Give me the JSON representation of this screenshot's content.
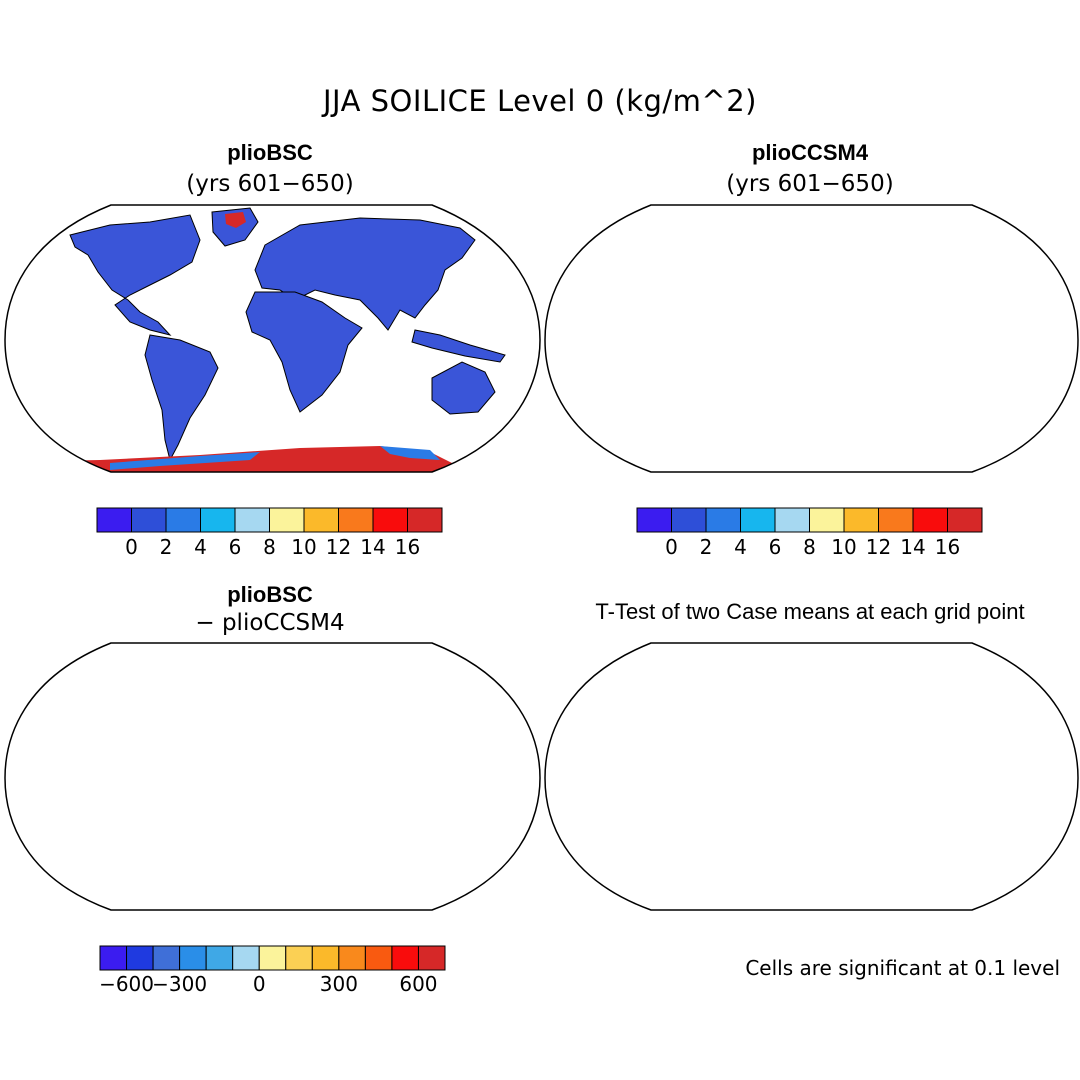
{
  "title": "JJA SOILICE Level 0 (kg/m^2)",
  "panels": {
    "top_left": {
      "title": "plioBSC",
      "subtitle": "(yrs 601−650)"
    },
    "top_right": {
      "title": "plioCCSM4",
      "subtitle": "(yrs 601−650)"
    },
    "bottom_left": {
      "title": "plioBSC",
      "subtitle": "− plioCCSM4"
    },
    "bottom_right": {
      "title": "T-Test of two Case means at each grid point",
      "note": "Cells are significant at 0.1 level"
    }
  },
  "colorbars": {
    "absolute": {
      "colors": [
        "#3b1cf0",
        "#2e4fd8",
        "#2a7be6",
        "#17b6ee",
        "#a6d8f1",
        "#fbf39b",
        "#fbb92a",
        "#f9791c",
        "#f90c0c",
        "#d62828"
      ],
      "tick_labels": [
        "0",
        "2",
        "4",
        "6",
        "8",
        "10",
        "12",
        "14",
        "16"
      ]
    },
    "difference": {
      "colors": [
        "#3b1cf0",
        "#1f3ae0",
        "#3f6fd8",
        "#2a8ee8",
        "#3fa8e6",
        "#a6d8f1",
        "#fbf39b",
        "#fbd054",
        "#fbb92a",
        "#f9891c",
        "#f95a10",
        "#f90c0c",
        "#d62828"
      ],
      "tick_labels": [
        "−600",
        "−300",
        "0",
        "300",
        "600"
      ]
    }
  },
  "map_colors": {
    "land_absolute": "#3a55d8",
    "antarctica_absolute": "#d62828",
    "land_difference": "#fbf39b",
    "diff_highlight": "#a6d8f1",
    "significant": "#f90c0c"
  }
}
